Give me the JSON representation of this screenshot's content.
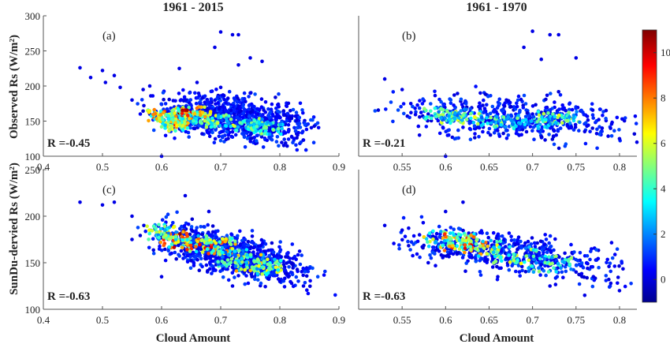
{
  "chart_data": {
    "type": "scatter",
    "panels": [
      {
        "id": "a",
        "column_title": "1961 - 2015",
        "panel_label": "(a)",
        "r_label": "R =-0.45",
        "xlim": [
          0.4,
          0.9
        ],
        "ylim": [
          100,
          300
        ],
        "x_ticks": [
          "0.4",
          "0.5",
          "0.6",
          "0.7",
          "0.8",
          "0.9"
        ],
        "y_ticks": [
          "100",
          "150",
          "200",
          "250",
          "300"
        ],
        "points": [
          [
            0.462,
            226
          ],
          [
            0.48,
            212
          ],
          [
            0.5,
            222
          ],
          [
            0.505,
            205
          ],
          [
            0.52,
            215
          ],
          [
            0.53,
            198
          ],
          [
            0.55,
            180
          ],
          [
            0.57,
            172
          ],
          [
            0.58,
            160
          ],
          [
            0.6,
            150
          ],
          [
            0.62,
            165
          ],
          [
            0.64,
            170
          ],
          [
            0.65,
            158
          ],
          [
            0.66,
            148
          ],
          [
            0.68,
            140
          ],
          [
            0.7,
            155
          ],
          [
            0.72,
            145
          ],
          [
            0.74,
            138
          ],
          [
            0.76,
            142
          ],
          [
            0.78,
            132
          ],
          [
            0.8,
            135
          ],
          [
            0.82,
            128
          ],
          [
            0.84,
            123
          ],
          [
            0.83,
            130
          ],
          [
            0.7,
            277
          ],
          [
            0.72,
            273
          ],
          [
            0.73,
            273
          ],
          [
            0.69,
            255
          ],
          [
            0.75,
            240
          ],
          [
            0.77,
            235
          ],
          [
            0.73,
            230
          ],
          [
            0.6,
            100
          ],
          [
            0.63,
            225
          ],
          [
            0.58,
            200
          ],
          [
            0.66,
            205
          ],
          [
            0.7,
            198
          ],
          [
            0.75,
            190
          ]
        ],
        "dense": [
          [
            0.6,
            158,
            8
          ],
          [
            0.63,
            150,
            9
          ],
          [
            0.66,
            155,
            7
          ],
          [
            0.7,
            150,
            6
          ],
          [
            0.75,
            145,
            5
          ],
          [
            0.78,
            140,
            5
          ],
          [
            0.65,
            162,
            10
          ],
          [
            0.62,
            145,
            7
          ]
        ]
      },
      {
        "id": "b",
        "column_title": "1961 - 1970",
        "panel_label": "(b)",
        "r_label": "R =-0.21",
        "xlim": [
          0.5,
          0.82
        ],
        "ylim": [
          100,
          300
        ],
        "x_ticks": [
          "0.55",
          "0.6",
          "0.65",
          "0.7",
          "0.75",
          "0.8"
        ],
        "y_ticks": [],
        "points": [
          [
            0.53,
            210
          ],
          [
            0.55,
            195
          ],
          [
            0.56,
            175
          ],
          [
            0.58,
            160
          ],
          [
            0.6,
            152
          ],
          [
            0.62,
            170
          ],
          [
            0.64,
            148
          ],
          [
            0.66,
            155
          ],
          [
            0.68,
            140
          ],
          [
            0.7,
            160
          ],
          [
            0.72,
            150
          ],
          [
            0.74,
            145
          ],
          [
            0.76,
            135
          ],
          [
            0.78,
            140
          ],
          [
            0.8,
            125
          ],
          [
            0.82,
            120
          ],
          [
            0.7,
            278
          ],
          [
            0.72,
            273
          ],
          [
            0.73,
            273
          ],
          [
            0.69,
            255
          ],
          [
            0.71,
            238
          ],
          [
            0.75,
            240
          ],
          [
            0.6,
            100
          ],
          [
            0.64,
            190
          ],
          [
            0.67,
            180
          ],
          [
            0.57,
            130
          ]
        ],
        "dense": [
          [
            0.62,
            155,
            6
          ],
          [
            0.66,
            150,
            5
          ],
          [
            0.7,
            148,
            4
          ],
          [
            0.6,
            160,
            5
          ],
          [
            0.73,
            155,
            6
          ]
        ]
      },
      {
        "id": "c",
        "column_title": "",
        "panel_label": "(c)",
        "r_label": "R =-0.63",
        "xlim": [
          0.4,
          0.9
        ],
        "ylim": [
          100,
          250
        ],
        "x_ticks": [
          "0.4",
          "0.5",
          "0.6",
          "0.7",
          "0.8",
          "0.9"
        ],
        "y_ticks": [
          "100",
          "150",
          "200",
          "250"
        ],
        "points": [
          [
            0.462,
            215
          ],
          [
            0.5,
            212
          ],
          [
            0.52,
            215
          ],
          [
            0.55,
            200
          ],
          [
            0.57,
            190
          ],
          [
            0.6,
            180
          ],
          [
            0.62,
            175
          ],
          [
            0.64,
            170
          ],
          [
            0.66,
            165
          ],
          [
            0.68,
            158
          ],
          [
            0.7,
            150
          ],
          [
            0.72,
            145
          ],
          [
            0.74,
            140
          ],
          [
            0.76,
            138
          ],
          [
            0.78,
            133
          ],
          [
            0.8,
            130
          ],
          [
            0.82,
            128
          ],
          [
            0.84,
            125
          ],
          [
            0.64,
            222
          ],
          [
            0.68,
            205
          ],
          [
            0.6,
            135
          ],
          [
            0.72,
            125
          ],
          [
            0.55,
            175
          ]
        ],
        "dense": [
          [
            0.62,
            175,
            10
          ],
          [
            0.66,
            170,
            9
          ],
          [
            0.7,
            168,
            8
          ],
          [
            0.75,
            150,
            7
          ],
          [
            0.78,
            145,
            6
          ],
          [
            0.6,
            182,
            6
          ],
          [
            0.72,
            155,
            5
          ]
        ]
      },
      {
        "id": "d",
        "column_title": "",
        "panel_label": "(d)",
        "r_label": "R =-0.63",
        "xlim": [
          0.5,
          0.82
        ],
        "ylim": [
          100,
          250
        ],
        "x_ticks": [
          "0.55",
          "0.6",
          "0.65",
          "0.7",
          "0.75",
          "0.8"
        ],
        "y_ticks": [],
        "points": [
          [
            0.53,
            190
          ],
          [
            0.55,
            185
          ],
          [
            0.57,
            180
          ],
          [
            0.59,
            175
          ],
          [
            0.61,
            170
          ],
          [
            0.63,
            165
          ],
          [
            0.65,
            160
          ],
          [
            0.67,
            155
          ],
          [
            0.69,
            152
          ],
          [
            0.71,
            148
          ],
          [
            0.73,
            145
          ],
          [
            0.75,
            140
          ],
          [
            0.77,
            135
          ],
          [
            0.79,
            128
          ],
          [
            0.8,
            120
          ],
          [
            0.6,
            205
          ],
          [
            0.62,
            215
          ],
          [
            0.58,
            150
          ],
          [
            0.66,
            135
          ],
          [
            0.72,
            125
          ],
          [
            0.76,
            115
          ]
        ],
        "dense": [
          [
            0.6,
            175,
            7
          ],
          [
            0.64,
            165,
            8
          ],
          [
            0.68,
            158,
            6
          ],
          [
            0.72,
            148,
            5
          ],
          [
            0.62,
            172,
            9
          ]
        ]
      }
    ],
    "ylabel_top": "Observed Rs (W/m²)",
    "ylabel_bottom": "SunDu-dervied Rs (W/m²)",
    "xlabel": "Cloud Amount",
    "colorbar": {
      "ticks": [
        "0",
        "2",
        "4",
        "6",
        "8",
        "10"
      ],
      "range": [
        -1,
        11
      ]
    }
  }
}
